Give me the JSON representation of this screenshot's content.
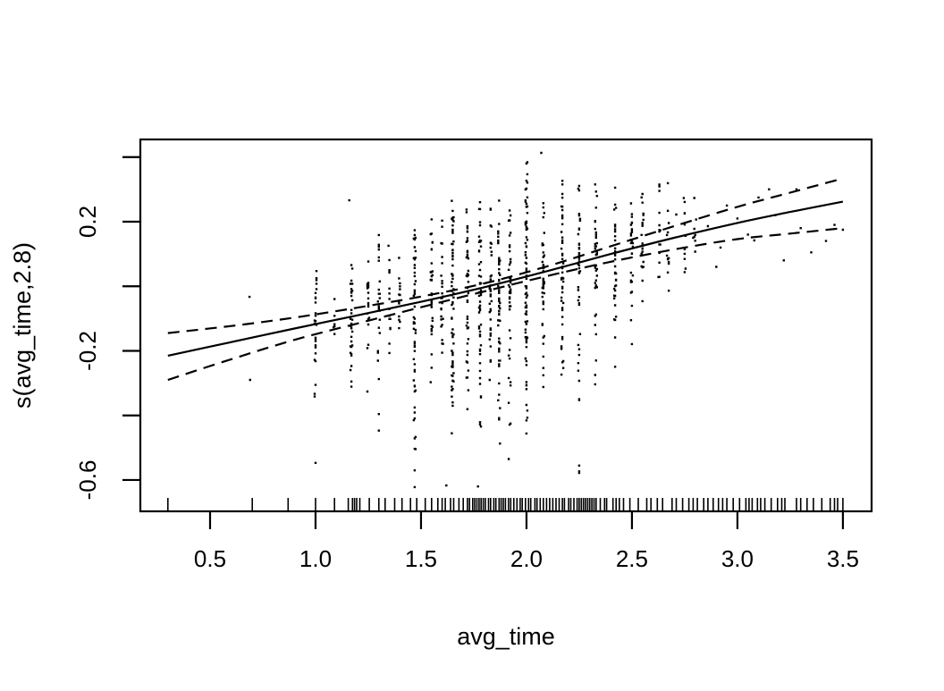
{
  "chart_data": {
    "type": "scatter",
    "title": "",
    "xlabel": "avg_time",
    "ylabel": "s(avg_time,2.8)",
    "grid": false,
    "legend": null,
    "xlim": [
      0.1695,
      3.636
    ],
    "ylim": [
      -0.697,
      0.4546
    ],
    "x_ticks": [
      0.5,
      1.0,
      1.5,
      2.0,
      2.5,
      3.0,
      3.5
    ],
    "x_tick_labels": [
      "0.5",
      "1.0",
      "1.5",
      "2.0",
      "2.5",
      "3.0",
      "3.5"
    ],
    "y_ticks": [
      0.4,
      0.2,
      0.0,
      -0.2,
      -0.4,
      -0.6
    ],
    "y_tick_labels": [
      "",
      "0.2",
      "",
      "-0.2",
      "",
      "-0.6"
    ],
    "line_color": "#000000",
    "point_color": "#000000",
    "series": [
      {
        "name": "smooth_fit",
        "style": "solid",
        "points": [
          [
            0.3,
            -0.215
          ],
          [
            0.6,
            -0.173
          ],
          [
            0.9,
            -0.131
          ],
          [
            1.2,
            -0.09
          ],
          [
            1.5,
            -0.048
          ],
          [
            1.8,
            -0.003
          ],
          [
            2.1,
            0.047
          ],
          [
            2.4,
            0.1
          ],
          [
            2.7,
            0.15
          ],
          [
            3.0,
            0.196
          ],
          [
            3.25,
            0.23
          ],
          [
            3.5,
            0.262
          ]
        ]
      },
      {
        "name": "ci_upper",
        "style": "dashed",
        "points": [
          [
            0.3,
            -0.145
          ],
          [
            0.6,
            -0.123
          ],
          [
            0.9,
            -0.097
          ],
          [
            1.2,
            -0.066
          ],
          [
            1.5,
            -0.032
          ],
          [
            1.8,
            0.009
          ],
          [
            2.1,
            0.062
          ],
          [
            2.4,
            0.124
          ],
          [
            2.7,
            0.186
          ],
          [
            3.0,
            0.246
          ],
          [
            3.25,
            0.29
          ],
          [
            3.5,
            0.334
          ]
        ]
      },
      {
        "name": "ci_lower",
        "style": "dashed",
        "points": [
          [
            0.3,
            -0.29
          ],
          [
            0.6,
            -0.226
          ],
          [
            0.9,
            -0.166
          ],
          [
            1.2,
            -0.115
          ],
          [
            1.5,
            -0.065
          ],
          [
            1.8,
            -0.016
          ],
          [
            2.1,
            0.032
          ],
          [
            2.4,
            0.076
          ],
          [
            2.7,
            0.114
          ],
          [
            3.0,
            0.146
          ],
          [
            3.25,
            0.163
          ],
          [
            3.5,
            0.18
          ]
        ]
      }
    ],
    "residual_strips": [
      {
        "x": 1.0,
        "n": 26,
        "ymin": -0.345,
        "ymax": 0.095
      },
      {
        "x": 1.09,
        "n": 6,
        "ymin": -0.2,
        "ymax": 0.02
      },
      {
        "x": 1.17,
        "n": 34,
        "ymin": -0.345,
        "ymax": 0.115
      },
      {
        "x": 1.25,
        "n": 20,
        "ymin": -0.47,
        "ymax": 0.14
      },
      {
        "x": 1.3,
        "n": 26,
        "ymin": -0.5,
        "ymax": 0.205
      },
      {
        "x": 1.35,
        "n": 16,
        "ymin": -0.28,
        "ymax": 0.13
      },
      {
        "x": 1.4,
        "n": 14,
        "ymin": -0.24,
        "ymax": 0.165
      },
      {
        "x": 1.47,
        "n": 55,
        "ymin": -0.625,
        "ymax": 0.225
      },
      {
        "x": 1.55,
        "n": 36,
        "ymin": -0.36,
        "ymax": 0.21
      },
      {
        "x": 1.6,
        "n": 26,
        "ymin": -0.31,
        "ymax": 0.235
      },
      {
        "x": 1.65,
        "n": 68,
        "ymin": -0.555,
        "ymax": 0.265
      },
      {
        "x": 1.72,
        "n": 44,
        "ymin": -0.4,
        "ymax": 0.25
      },
      {
        "x": 1.78,
        "n": 54,
        "ymin": -0.46,
        "ymax": 0.27
      },
      {
        "x": 1.83,
        "n": 36,
        "ymin": -0.31,
        "ymax": 0.245
      },
      {
        "x": 1.87,
        "n": 58,
        "ymin": -0.5,
        "ymax": 0.285
      },
      {
        "x": 1.92,
        "n": 44,
        "ymin": -0.545,
        "ymax": 0.25
      },
      {
        "x": 2.0,
        "n": 82,
        "ymin": -0.46,
        "ymax": 0.41
      },
      {
        "x": 2.08,
        "n": 46,
        "ymin": -0.365,
        "ymax": 0.3
      },
      {
        "x": 2.17,
        "n": 52,
        "ymin": -0.44,
        "ymax": 0.345
      },
      {
        "x": 2.25,
        "n": 44,
        "ymin": -0.585,
        "ymax": 0.325
      },
      {
        "x": 2.33,
        "n": 38,
        "ymin": -0.305,
        "ymax": 0.33
      },
      {
        "x": 2.42,
        "n": 34,
        "ymin": -0.26,
        "ymax": 0.315
      },
      {
        "x": 2.5,
        "n": 28,
        "ymin": -0.205,
        "ymax": 0.325
      },
      {
        "x": 2.55,
        "n": 22,
        "ymin": -0.165,
        "ymax": 0.3
      },
      {
        "x": 2.63,
        "n": 16,
        "ymin": -0.095,
        "ymax": 0.345
      },
      {
        "x": 2.67,
        "n": 13,
        "ymin": -0.055,
        "ymax": 0.41
      },
      {
        "x": 2.75,
        "n": 11,
        "ymin": 0.005,
        "ymax": 0.325
      },
      {
        "x": 2.8,
        "n": 7,
        "ymin": 0.04,
        "ymax": 0.3
      }
    ],
    "isolated_points": [
      [
        0.687,
        -0.033
      ],
      [
        0.69,
        -0.29
      ],
      [
        1.0,
        -0.547
      ],
      [
        1.16,
        0.266
      ],
      [
        1.62,
        -0.617
      ],
      [
        1.77,
        -0.62
      ],
      [
        2.07,
        0.413
      ],
      [
        2.71,
        0.222
      ],
      [
        2.79,
        0.15
      ],
      [
        2.86,
        0.186
      ],
      [
        2.9,
        0.06
      ],
      [
        2.92,
        0.12
      ],
      [
        2.95,
        0.25
      ],
      [
        3.0,
        0.21
      ],
      [
        3.05,
        0.16
      ],
      [
        3.08,
        0.142
      ],
      [
        3.1,
        0.275
      ],
      [
        3.15,
        0.3
      ],
      [
        3.18,
        0.22
      ],
      [
        3.22,
        0.08
      ],
      [
        3.28,
        0.3
      ],
      [
        3.3,
        0.18
      ],
      [
        3.35,
        0.105
      ],
      [
        3.42,
        0.14
      ],
      [
        3.46,
        0.19
      ],
      [
        3.5,
        0.175
      ]
    ],
    "rug_x": [
      0.3,
      0.7,
      0.87,
      1.0,
      1.09,
      1.155,
      1.175,
      1.185,
      1.195,
      1.21,
      1.255,
      1.3,
      1.33,
      1.375,
      1.41,
      1.45,
      1.48,
      1.52,
      1.55,
      1.58,
      1.6,
      1.615,
      1.64,
      1.655,
      1.68,
      1.7,
      1.72,
      1.73,
      1.745,
      1.755,
      1.765,
      1.775,
      1.785,
      1.795,
      1.805,
      1.82,
      1.83,
      1.845,
      1.855,
      1.87,
      1.88,
      1.89,
      1.9,
      1.915,
      1.925,
      1.94,
      1.955,
      1.97,
      1.98,
      1.995,
      2.01,
      2.02,
      2.04,
      2.05,
      2.065,
      2.08,
      2.095,
      2.11,
      2.125,
      2.14,
      2.155,
      2.17,
      2.18,
      2.2,
      2.21,
      2.225,
      2.24,
      2.25,
      2.26,
      2.27,
      2.28,
      2.29,
      2.3,
      2.31,
      2.32,
      2.33,
      2.35,
      2.37,
      2.38,
      2.41,
      2.425,
      2.44,
      2.46,
      2.49,
      2.53,
      2.57,
      2.59,
      2.62,
      2.645,
      2.69,
      2.71,
      2.74,
      2.77,
      2.79,
      2.81,
      2.84,
      2.86,
      2.885,
      2.91,
      2.93,
      2.95,
      2.98,
      3.01,
      3.04,
      3.055,
      3.07,
      3.095,
      3.11,
      3.13,
      3.16,
      3.19,
      3.21,
      3.225,
      3.28,
      3.3,
      3.33,
      3.36,
      3.4,
      3.44,
      3.46,
      3.475,
      3.5
    ]
  }
}
